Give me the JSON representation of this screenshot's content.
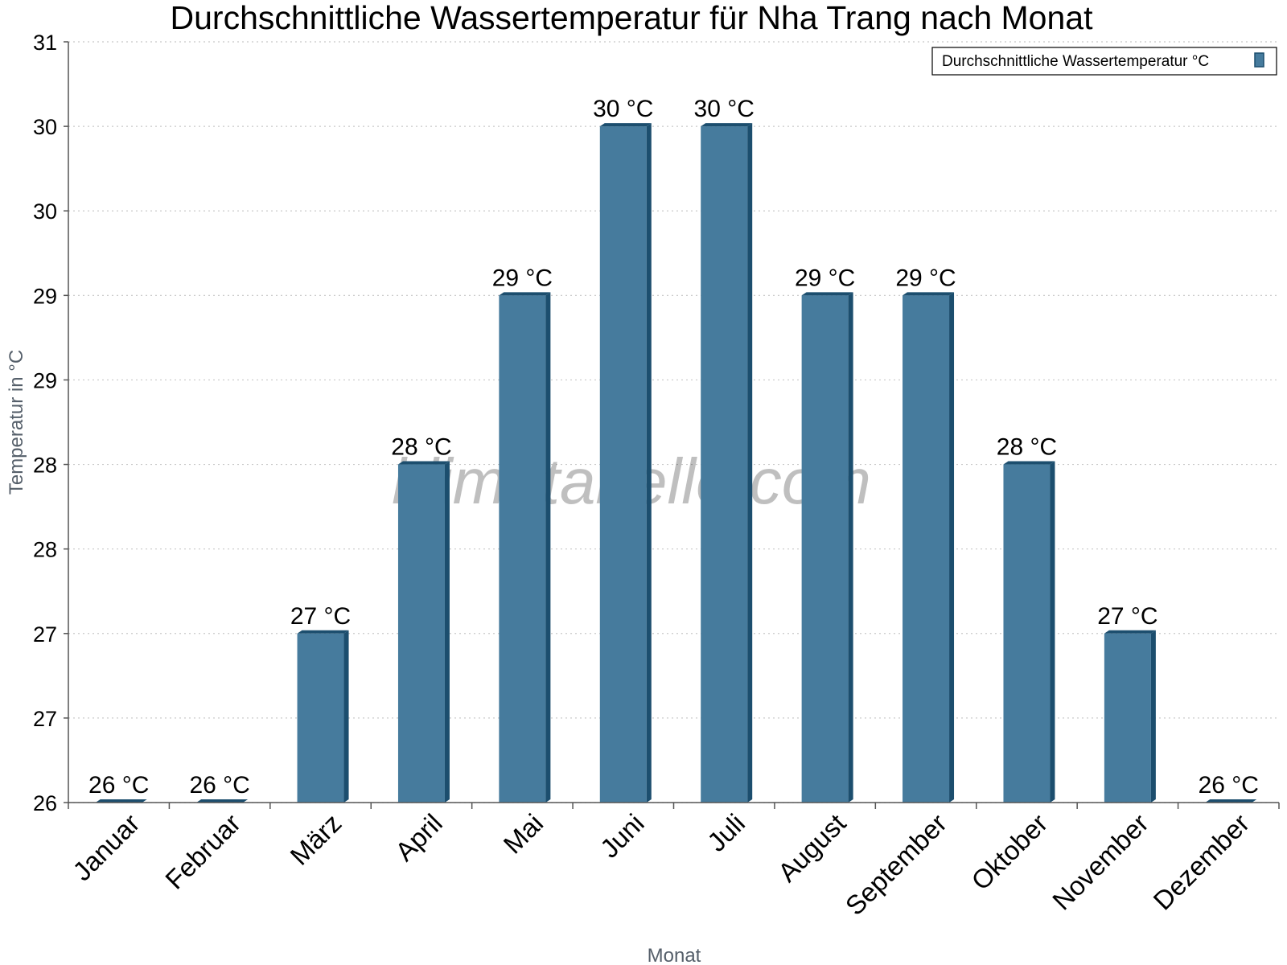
{
  "chart_data": {
    "type": "bar",
    "title": "Durchschnittliche Wassertemperatur für Nha Trang nach Monat",
    "xlabel": "Monat",
    "ylabel": "Temperatur in °C",
    "categories": [
      "Januar",
      "Februar",
      "März",
      "April",
      "Mai",
      "Juni",
      "Juli",
      "August",
      "September",
      "Oktober",
      "November",
      "Dezember"
    ],
    "series": [
      {
        "name": "Durchschnittliche Wassertemperatur °C",
        "values": [
          26,
          26,
          27,
          28,
          29,
          30,
          30,
          29,
          29,
          28,
          27,
          26
        ],
        "labels": [
          "26 °C",
          "26 °C",
          "27 °C",
          "28 °C",
          "29 °C",
          "30 °C",
          "30 °C",
          "29 °C",
          "29 °C",
          "28 °C",
          "27 °C",
          "26 °C"
        ]
      }
    ],
    "ylim": [
      26,
      30.5
    ],
    "yticks": [
      26,
      26.5,
      27,
      27.5,
      28,
      28.5,
      29,
      29.5,
      30,
      30.5
    ],
    "ytick_labels": [
      "26",
      "27",
      "27",
      "28",
      "28",
      "29",
      "29",
      "30",
      "30",
      "31"
    ],
    "grid": true,
    "legend_position": "top-right",
    "bar_color": "#467b9d",
    "bar_edge_color": "#1c4e6e"
  },
  "watermark": "klimatabelle.com"
}
